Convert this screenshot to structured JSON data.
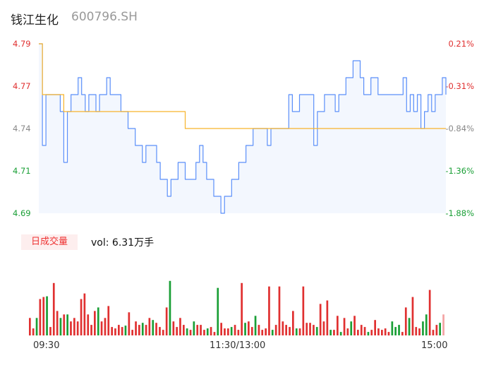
{
  "header": {
    "name": "钱江生化",
    "code": "600796.SH"
  },
  "volume_box": {
    "badge": "日成交量",
    "label": "vol: 6.31万手"
  },
  "colors": {
    "price": "#5b8ff9",
    "avg": "#f7b32b",
    "up": "#e03030",
    "down": "#1a9f36",
    "neutral": "#888888"
  },
  "chart_data": [
    {
      "type": "line",
      "title": "",
      "y_ticks_left": [
        "4.79",
        "4.77",
        "4.74",
        "4.71",
        "4.69"
      ],
      "y_ticks_right": [
        "0.21%",
        "-0.31%",
        "-0.84%",
        "-1.36%",
        "-1.88%"
      ],
      "x_ticks": [
        "09:30",
        "11:30/13:00",
        "15:00"
      ],
      "ylim": [
        4.69,
        4.79
      ],
      "series": [
        {
          "role": "price",
          "values": [
            4.79,
            4.73,
            4.76,
            4.76,
            4.76,
            4.76,
            4.75,
            4.72,
            4.75,
            4.76,
            4.76,
            4.77,
            4.76,
            4.75,
            4.76,
            4.76,
            4.75,
            4.76,
            4.76,
            4.77,
            4.76,
            4.76,
            4.76,
            4.75,
            4.75,
            4.74,
            4.74,
            4.73,
            4.73,
            4.72,
            4.73,
            4.73,
            4.73,
            4.72,
            4.71,
            4.71,
            4.7,
            4.71,
            4.71,
            4.72,
            4.72,
            4.71,
            4.71,
            4.71,
            4.72,
            4.73,
            4.72,
            4.71,
            4.71,
            4.7,
            4.7,
            4.69,
            4.7,
            4.7,
            4.71,
            4.71,
            4.72,
            4.72,
            4.73,
            4.73,
            4.74,
            4.74,
            4.74,
            4.74,
            4.73,
            4.74,
            4.74,
            4.74,
            4.74,
            4.74,
            4.76,
            4.75,
            4.75,
            4.76,
            4.76,
            4.76,
            4.76,
            4.73,
            4.75,
            4.75,
            4.76,
            4.76,
            4.76,
            4.75,
            4.76,
            4.76,
            4.77,
            4.77,
            4.78,
            4.78,
            4.77,
            4.76,
            4.76,
            4.77,
            4.77,
            4.76,
            4.76,
            4.76,
            4.76,
            4.76,
            4.76,
            4.76,
            4.77,
            4.75,
            4.76,
            4.75,
            4.76,
            4.74,
            4.75,
            4.76,
            4.75,
            4.76,
            4.76,
            4.77,
            4.76
          ]
        },
        {
          "role": "average",
          "values": [
            4.79,
            4.76,
            4.76,
            4.76,
            4.76,
            4.76,
            4.76,
            4.75,
            4.75,
            4.75,
            4.75,
            4.75,
            4.75,
            4.75,
            4.75,
            4.75,
            4.75,
            4.75,
            4.75,
            4.75,
            4.75,
            4.75,
            4.75,
            4.75,
            4.75,
            4.75,
            4.75,
            4.75,
            4.75,
            4.75,
            4.75,
            4.75,
            4.75,
            4.75,
            4.75,
            4.75,
            4.75,
            4.75,
            4.75,
            4.75,
            4.75,
            4.74,
            4.74,
            4.74,
            4.74,
            4.74,
            4.74,
            4.74,
            4.74,
            4.74,
            4.74,
            4.74,
            4.74,
            4.74,
            4.74,
            4.74,
            4.74,
            4.74,
            4.74,
            4.74,
            4.74,
            4.74,
            4.74,
            4.74,
            4.74,
            4.74,
            4.74,
            4.74,
            4.74,
            4.74,
            4.74,
            4.74,
            4.74,
            4.74,
            4.74,
            4.74,
            4.74,
            4.74,
            4.74,
            4.74,
            4.74,
            4.74,
            4.74,
            4.74,
            4.74,
            4.74,
            4.74,
            4.74,
            4.74,
            4.74,
            4.74,
            4.74,
            4.74,
            4.74,
            4.74,
            4.74,
            4.74,
            4.74,
            4.74,
            4.74,
            4.74,
            4.74,
            4.74,
            4.74,
            4.74,
            4.74,
            4.74,
            4.74,
            4.74,
            4.74,
            4.74,
            4.74,
            4.74,
            4.74,
            4.74
          ]
        }
      ]
    },
    {
      "type": "bar",
      "title": "",
      "ylim": [
        0,
        100
      ],
      "values": [
        25,
        10,
        25,
        52,
        55,
        56,
        12,
        75,
        35,
        25,
        30,
        30,
        20,
        25,
        20,
        52,
        60,
        30,
        15,
        35,
        40,
        20,
        25,
        42,
        12,
        10,
        15,
        12,
        14,
        33,
        8,
        20,
        15,
        18,
        15,
        25,
        22,
        18,
        12,
        8,
        40,
        78,
        20,
        12,
        25,
        15,
        10,
        8,
        20,
        15,
        15,
        8,
        10,
        12,
        5,
        68,
        18,
        10,
        10,
        12,
        15,
        8,
        75,
        18,
        20,
        12,
        28,
        15,
        8,
        10,
        70,
        8,
        15,
        70,
        20,
        15,
        12,
        35,
        10,
        10,
        70,
        18,
        18,
        15,
        12,
        45,
        20,
        50,
        8,
        8,
        28,
        5,
        25,
        10,
        20,
        28,
        8,
        15,
        12,
        5,
        8,
        22,
        10,
        8,
        10,
        5,
        20,
        12,
        15,
        5,
        40,
        25,
        55,
        12,
        10,
        20,
        30,
        65,
        8,
        15,
        18,
        30
      ],
      "directions": [
        "u",
        "u",
        "d",
        "u",
        "u",
        "d",
        "u",
        "u",
        "u",
        "d",
        "u",
        "d",
        "u",
        "u",
        "u",
        "u",
        "u",
        "u",
        "u",
        "u",
        "d",
        "u",
        "u",
        "u",
        "u",
        "u",
        "u",
        "u",
        "d",
        "u",
        "u",
        "u",
        "u",
        "d",
        "u",
        "u",
        "d",
        "u",
        "u",
        "u",
        "u",
        "d",
        "u",
        "u",
        "u",
        "u",
        "d",
        "u",
        "d",
        "u",
        "u",
        "u",
        "d",
        "u",
        "u",
        "d",
        "u",
        "u",
        "u",
        "d",
        "u",
        "u",
        "u",
        "d",
        "u",
        "u",
        "d",
        "u",
        "u",
        "u",
        "u",
        "d",
        "u",
        "u",
        "u",
        "u",
        "u",
        "u",
        "d",
        "u",
        "u",
        "u",
        "u",
        "u",
        "d",
        "u",
        "u",
        "u",
        "d",
        "u",
        "u",
        "d",
        "u",
        "u",
        "d",
        "u",
        "u",
        "u",
        "u",
        "d",
        "u",
        "u",
        "u",
        "u",
        "u",
        "u",
        "d",
        "d",
        "d",
        "u",
        "u",
        "d",
        "u",
        "u",
        "u",
        "d",
        "d",
        "u",
        "u",
        "u",
        "d",
        "n"
      ]
    }
  ]
}
